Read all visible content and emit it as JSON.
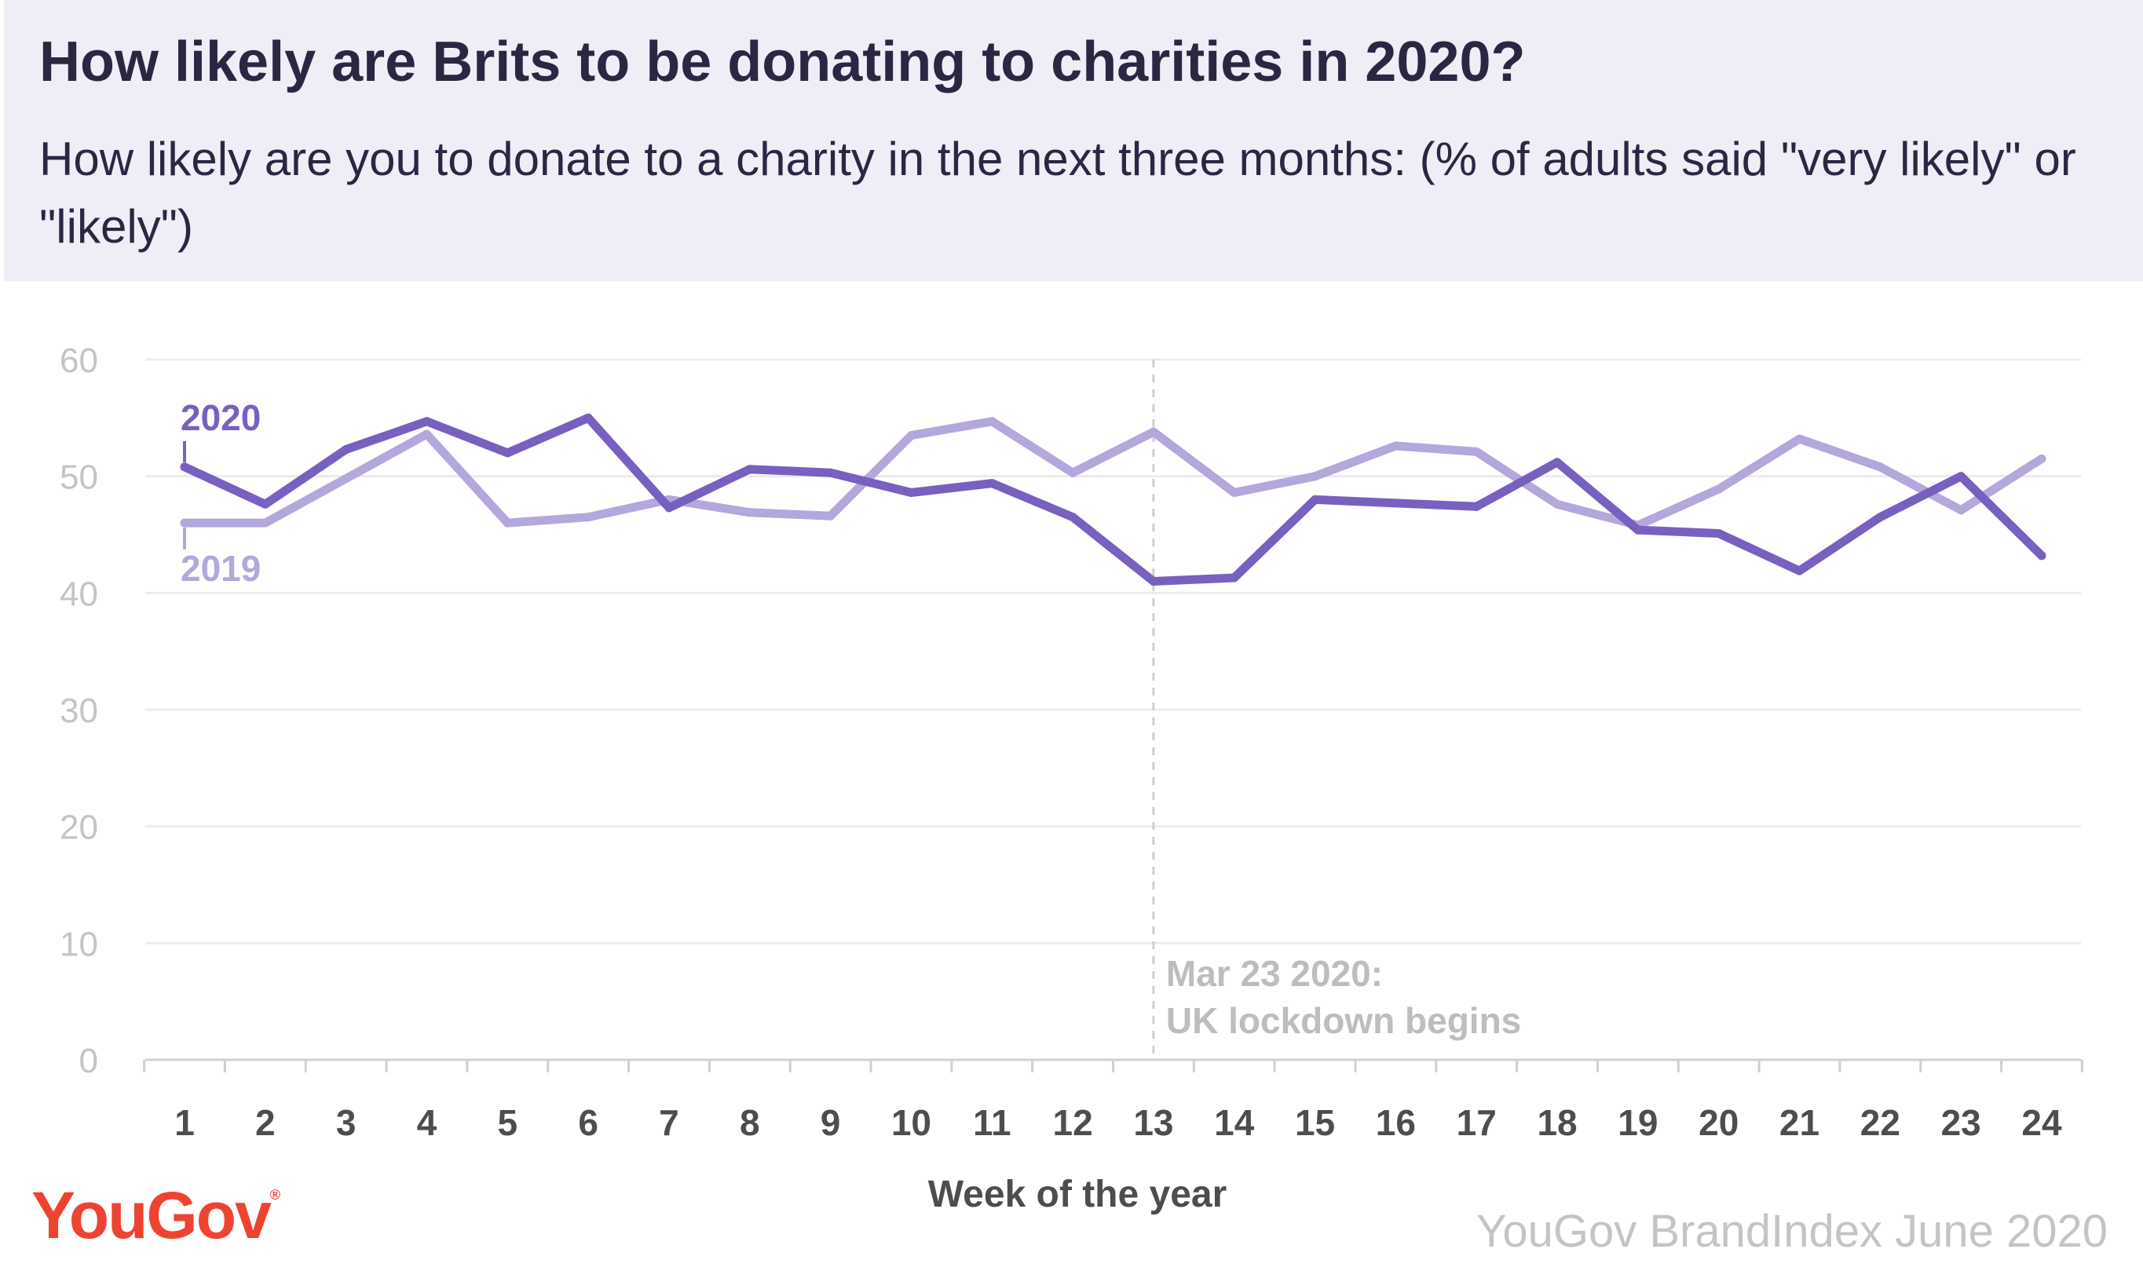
{
  "header": {
    "title": "How likely are Brits to be donating to charities in 2020?",
    "subtitle": "How likely are you to donate to a charity in the next three months: (% of adults said \"very likely\" or \"likely\")"
  },
  "chart_data": {
    "type": "line",
    "title": "How likely are Brits to be donating to charities in 2020?",
    "subtitle": "How likely are you to donate to a charity in the next three months: (% of adults said \"very likely\" or \"likely\")",
    "xlabel": "Week of the year",
    "ylabel": "",
    "categories": [
      "1",
      "2",
      "3",
      "4",
      "5",
      "6",
      "7",
      "8",
      "9",
      "10",
      "11",
      "12",
      "13",
      "14",
      "15",
      "16",
      "17",
      "18",
      "19",
      "20",
      "21",
      "22",
      "23",
      "24"
    ],
    "yticks": [
      "0",
      "10",
      "20",
      "30",
      "40",
      "50",
      "60"
    ],
    "ylim": [
      0,
      60
    ],
    "grid": true,
    "series": [
      {
        "name": "2020",
        "color": "#7860c0",
        "values": [
          50.8,
          47.6,
          52.3,
          54.7,
          52.0,
          55.0,
          47.3,
          50.6,
          50.3,
          48.6,
          49.4,
          46.5,
          41.0,
          41.3,
          48.0,
          47.7,
          47.4,
          51.2,
          45.4,
          45.1,
          41.9,
          46.5,
          50.0,
          43.2
        ]
      },
      {
        "name": "2019",
        "color": "#b3a7dc",
        "values": [
          46.0,
          46.0,
          49.8,
          53.6,
          46.0,
          46.5,
          48.0,
          46.9,
          46.6,
          53.5,
          54.7,
          50.3,
          53.8,
          48.6,
          50.0,
          52.6,
          52.1,
          47.6,
          45.8,
          48.9,
          53.2,
          50.8,
          47.1,
          51.5
        ]
      }
    ],
    "annotation": {
      "week": 13,
      "lines": [
        "Mar 23 2020:",
        "UK lockdown begins"
      ],
      "color": "#cfcfcf"
    }
  },
  "branding": {
    "logo": "YouGov",
    "logo_mark": "®",
    "source": "YouGov BrandIndex June 2020"
  }
}
